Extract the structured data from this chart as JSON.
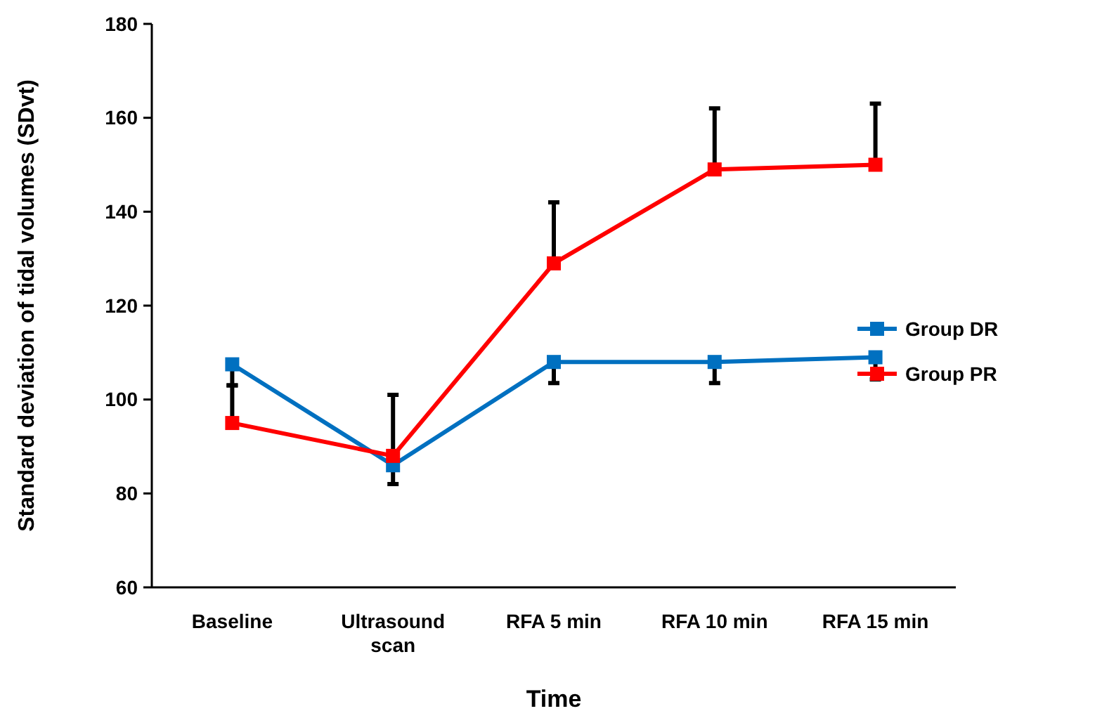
{
  "chart_data": {
    "type": "line",
    "xlabel": "Time",
    "ylabel": "Standard deviation of tidal volumes (SDvt)",
    "categories": [
      "Baseline",
      "Ultrasound scan",
      "RFA 5 min",
      "RFA 10 min",
      "RFA 15 min"
    ],
    "series": [
      {
        "name": "Group DR",
        "color": "#0070c0",
        "values": [
          107.5,
          86,
          108,
          108,
          109
        ],
        "errors": [
          [
            103,
            107.5
          ],
          [
            82,
            86
          ],
          [
            103.5,
            108
          ],
          [
            103.5,
            108
          ],
          [
            104.3,
            109
          ]
        ]
      },
      {
        "name": "Group PR",
        "color": "#ff0000",
        "values": [
          95,
          88,
          129,
          149,
          150
        ],
        "errors": [
          [
            95,
            103
          ],
          [
            88,
            101
          ],
          [
            129,
            142
          ],
          [
            149,
            162
          ],
          [
            150,
            163
          ]
        ]
      }
    ],
    "ylim": [
      60,
      180
    ],
    "yticks": [
      60,
      80,
      100,
      120,
      140,
      160,
      180
    ],
    "grid": false,
    "legend": "right",
    "marker": "square",
    "line_style": "solid"
  }
}
